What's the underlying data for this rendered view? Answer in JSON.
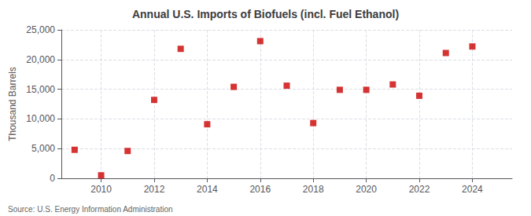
{
  "chart_data": {
    "type": "scatter",
    "title": "Annual U.S. Imports of Biofuels (incl. Fuel Ethanol)",
    "ylabel": "Thousand Barrels",
    "annotations": [
      "Source: U.S. Energy Information Administration"
    ],
    "x": [
      2009,
      2010,
      2011,
      2012,
      2013,
      2014,
      2015,
      2016,
      2017,
      2018,
      2019,
      2020,
      2021,
      2022,
      2023,
      2024
    ],
    "values": [
      4800,
      500,
      4600,
      13200,
      21800,
      9100,
      15400,
      23100,
      15600,
      9300,
      14900,
      14900,
      15800,
      13900,
      21100,
      22200
    ],
    "color": "#cc0000",
    "marker": "square",
    "xlim": [
      2008.5,
      2025.5
    ],
    "xticks": [
      2010,
      2012,
      2014,
      2016,
      2018,
      2020,
      2022,
      2024
    ],
    "ylim": [
      0,
      25000
    ],
    "yticks": [
      0,
      {
        "value": 5000,
        "label": "5,000"
      },
      {
        "value": 10000,
        "label": "10,000"
      },
      {
        "value": 15000,
        "label": "15,000"
      },
      {
        "value": 20000,
        "label": "20,000"
      },
      {
        "value": 25000,
        "label": "25,000"
      }
    ],
    "grid": true
  }
}
